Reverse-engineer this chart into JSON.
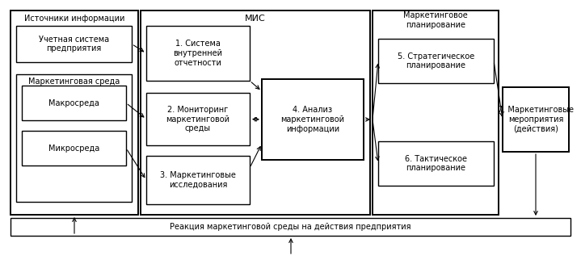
{
  "bg_color": "#ffffff",
  "box_face": "#ffffff",
  "box_edge": "#000000",
  "font_family": "DejaVu Sans",
  "font_size": 7.0,
  "font_size_mis": 8.5,
  "section1_label": "Источники информации",
  "section2_label": "МИС",
  "section3_label": "Маркетинговое\nпланирование",
  "section4_label": "7. Маркетинговые\nмероприятия\n(действия)",
  "box1_text": "Учетная система\nпредприятия",
  "box2_text": "Маркетинговая среда",
  "box3_text": "Макросреда",
  "box4_text": "Микросреда",
  "box5_text": "1. Система\nвнутренней\nотчетности",
  "box6_text": "2. Мониторинг\nмаркетинговой\nсреды",
  "box7_text": "4. Анализ\nмаркетинговой\nинформации",
  "box8_text": "3. Маркетинговые\nисследования",
  "box9_text": "5. Стратегическое\nпланирование",
  "box10_text": "6. Тактическое\nпланирование",
  "bottom_text": "Реакция маркетинговой среды на действия предприятия"
}
